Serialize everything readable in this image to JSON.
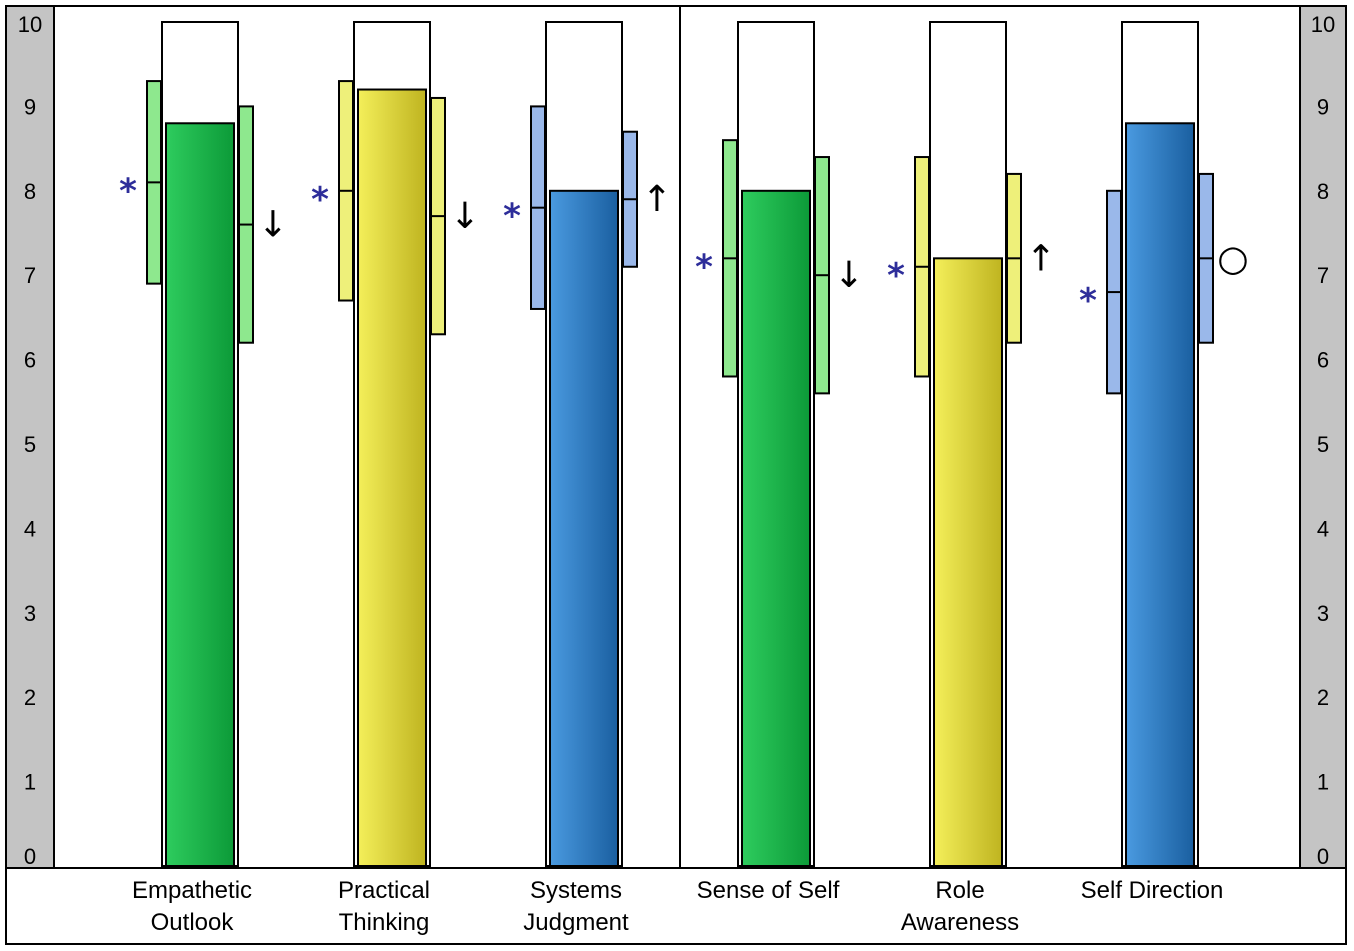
{
  "chart_data": {
    "type": "bar",
    "ylim": [
      0,
      10
    ],
    "yticks": [
      "0",
      "1",
      "2",
      "3",
      "4",
      "5",
      "6",
      "7",
      "8",
      "9",
      "10"
    ],
    "categories": [
      {
        "lines": [
          "Empathetic",
          "Outlook"
        ],
        "score": 8.8,
        "color": "green",
        "left_range": {
          "low": 6.9,
          "mid": 8.1,
          "high": 9.3,
          "marker": "*"
        },
        "right_range": {
          "low": 6.2,
          "mid": 7.6,
          "high": 9.0,
          "trend": "↓"
        }
      },
      {
        "lines": [
          "Practical",
          "Thinking"
        ],
        "score": 9.2,
        "color": "yellow",
        "left_range": {
          "low": 6.7,
          "mid": 8.0,
          "high": 9.3,
          "marker": "*"
        },
        "right_range": {
          "low": 6.3,
          "mid": 7.7,
          "high": 9.1,
          "trend": "↓"
        }
      },
      {
        "lines": [
          "Systems",
          "Judgment"
        ],
        "score": 8.0,
        "color": "blue",
        "left_range": {
          "low": 6.6,
          "mid": 7.8,
          "high": 9.0,
          "marker": "*"
        },
        "right_range": {
          "low": 7.1,
          "mid": 7.9,
          "high": 8.7,
          "trend": "↑"
        }
      },
      {
        "lines": [
          "Sense of Self"
        ],
        "score": 8.0,
        "color": "green",
        "left_range": {
          "low": 5.8,
          "mid": 7.2,
          "high": 8.6,
          "marker": "*"
        },
        "right_range": {
          "low": 5.6,
          "mid": 7.0,
          "high": 8.4,
          "trend": "↓"
        }
      },
      {
        "lines": [
          "Role",
          "Awareness"
        ],
        "score": 7.2,
        "color": "yellow",
        "left_range": {
          "low": 5.8,
          "mid": 7.1,
          "high": 8.4,
          "marker": "*"
        },
        "right_range": {
          "low": 6.2,
          "mid": 7.2,
          "high": 8.2,
          "trend": "↑"
        }
      },
      {
        "lines": [
          "Self Direction"
        ],
        "score": 8.8,
        "color": "blue",
        "left_range": {
          "low": 5.6,
          "mid": 6.8,
          "high": 8.0,
          "marker": "*"
        },
        "right_range": {
          "low": 6.2,
          "mid": 7.2,
          "high": 8.2,
          "trend": "○"
        }
      }
    ],
    "colors": {
      "green": {
        "light": "#2ecc5e",
        "dark": "#0c9a38",
        "range": "#8ee88e"
      },
      "yellow": {
        "light": "#f4ef5a",
        "dark": "#bfb420",
        "range": "#eef07a"
      },
      "blue": {
        "light": "#4a9ae0",
        "dark": "#1a5fa0",
        "range": "#9ab8ea"
      },
      "star": "#2d2d9a",
      "axis_panel": "#c4c4c4"
    }
  }
}
